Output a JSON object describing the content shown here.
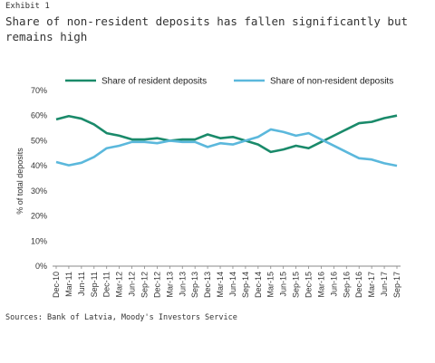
{
  "header": {
    "exhibit": "Exhibit 1",
    "title": "Share of non-resident deposits has fallen significantly but remains high"
  },
  "footer": {
    "source": "Sources: Bank of Latvia, Moody's Investors Service"
  },
  "chart_data": {
    "type": "line",
    "ylabel": "% of total deposits",
    "ylim": [
      0,
      70
    ],
    "yticks": [
      "0%",
      "10%",
      "20%",
      "30%",
      "40%",
      "50%",
      "60%",
      "70%"
    ],
    "grid": false,
    "legend": "top",
    "categories": [
      "Dec-10",
      "Mar-11",
      "Jun-11",
      "Sep-11",
      "Dec-11",
      "Mar-12",
      "Jun-12",
      "Sep-12",
      "Dec-12",
      "Mar-13",
      "Jun-13",
      "Sep-13",
      "Dec-13",
      "Mar-14",
      "Jun-14",
      "Sep-14",
      "Dec-14",
      "Mar-15",
      "Jun-15",
      "Sep-15",
      "Dec-15",
      "Mar-16",
      "Jun-16",
      "Sep-16",
      "Dec-16",
      "Mar-17",
      "Jun-17",
      "Sep-17"
    ],
    "series": [
      {
        "name": "Share of resident deposits",
        "color": "#1a8a6a",
        "values": [
          58.5,
          59.8,
          58.8,
          56.5,
          53,
          52,
          50.5,
          50.5,
          51,
          50,
          50.5,
          50.5,
          52.5,
          51,
          51.5,
          50,
          48.5,
          45.5,
          46.5,
          48,
          47,
          49.5,
          52,
          54.5,
          57,
          57.5,
          59,
          60
        ]
      },
      {
        "name": "Share of non-resident deposits",
        "color": "#5bb8dc",
        "values": [
          41.5,
          40.2,
          41.2,
          43.5,
          47,
          48,
          49.5,
          49.5,
          49,
          50,
          49.5,
          49.5,
          47.5,
          49,
          48.5,
          50,
          51.5,
          54.5,
          53.5,
          52,
          53,
          50.5,
          48,
          45.5,
          43,
          42.5,
          41,
          40
        ]
      }
    ]
  }
}
